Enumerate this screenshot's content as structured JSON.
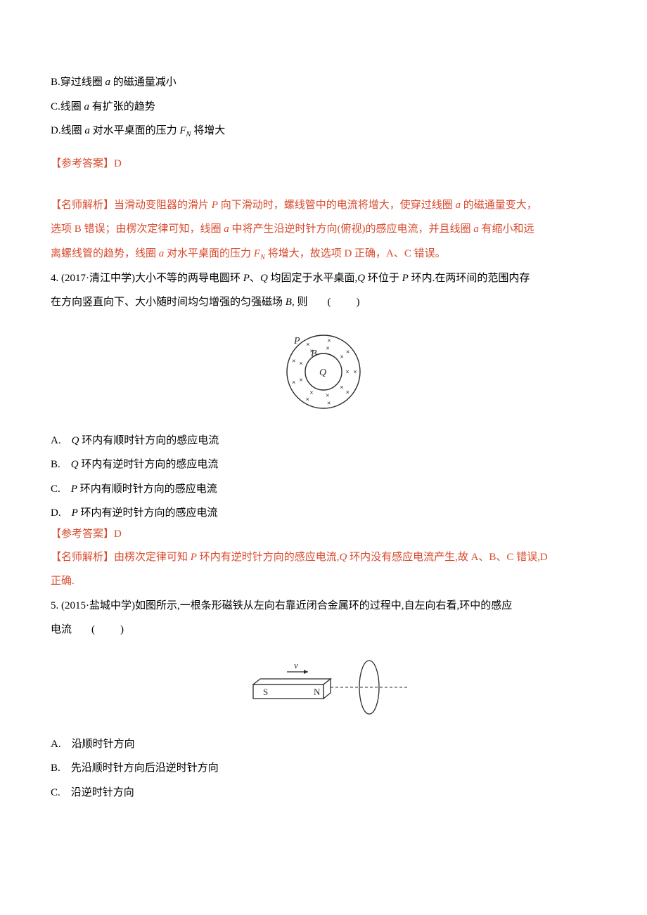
{
  "options1": {
    "b_pre": "B.穿过线圈 ",
    "b_var": "a",
    "b_post": " 的磁通量减小",
    "c_pre": "C.线圈 ",
    "c_var": "a",
    "c_post": " 有扩张的趋势",
    "d_pre": "D.线圈 ",
    "d_var": "a",
    "d_post1": " 对水平桌面的压力 ",
    "d_fn": "F",
    "d_sub": "N",
    "d_post2": " 将增大"
  },
  "answer1": {
    "label": "【参考答案】",
    "value": "D"
  },
  "explain1": {
    "label": "【名师解析】",
    "line1a": "当滑动变阻器的滑片 ",
    "line1_p": "P",
    "line1b": " 向下滑动时，螺线管中的电流将增大，使穿过线圈 ",
    "line1_a1": "a",
    "line1c": " 的磁通量变大，",
    "line2a": "选项 B 错误；由楞次定律可知，线圈 ",
    "line2_a1": "a",
    "line2b": " 中将产生沿逆时针方向(俯视)的感应电流，并且线圈 ",
    "line2_a2": "a",
    "line2c": " 有缩小和远",
    "line3a": "离螺线管的趋势，线圈 ",
    "line3_a1": "a",
    "line3b": " 对水平桌面的压力 ",
    "line3_fn": "F",
    "line3_sub": "N",
    "line3c": " 将增大，故选项 D 正确，A、C 错误。"
  },
  "q4": {
    "num": "4.",
    "src": " (2017·清江中学)大小不等的两导电圆环 ",
    "p": "P",
    "sep": "、",
    "q": "Q",
    "mid1": " 均固定于水平桌面,",
    "q2": "Q",
    "mid2": " 环位于 ",
    "p2": "P",
    "end1": " 环内.在两环间的范围内存",
    "line2a": "在方向竖直向下、大小随时间均匀增强的匀强磁场 ",
    "b": "B",
    "line2b": ", 则",
    "paren": "(　　)"
  },
  "fig4": {
    "labels": {
      "p": "P",
      "b": "B",
      "q": "Q"
    },
    "colors": {
      "stroke": "#2b2b2b",
      "text": "#2b2b2b"
    },
    "outer_r": 52,
    "inner_r": 26,
    "stroke_width": 1.4
  },
  "q4_opts": {
    "a_pre": "A.　",
    "a_var": "Q",
    "a_post": " 环内有顺时针方向的感应电流",
    "b_pre": "B.　",
    "b_var": "Q",
    "b_post": " 环内有逆时针方向的感应电流",
    "c_pre": "C.　",
    "c_var": "P",
    "c_post": " 环内有顺时针方向的感应电流",
    "d_pre": "D.　",
    "d_var": "P",
    "d_post": " 环内有逆时针方向的感应电流"
  },
  "answer4": {
    "label": "【参考答案】",
    "value": "D"
  },
  "explain4": {
    "label": "【名师解析】",
    "line1a": "由楞次定律可知 ",
    "p": "P",
    "line1b": " 环内有逆时针方向的感应电流,",
    "q": "Q",
    "line1c": " 环内没有感应电流产生,故 A、B、C 错误,D",
    "line2": "正确."
  },
  "q5": {
    "num": "5.",
    "src": " (2015·盐城中学)如图所示,一根条形磁铁从左向右靠近闭合金属环的过程中,自左向右看,环中的感应",
    "line2a": "电流",
    "paren": "(　　)"
  },
  "fig5": {
    "labels": {
      "s": "S",
      "n": "N",
      "v": "v"
    },
    "colors": {
      "stroke": "#2b2b2b",
      "text": "#2b2b2b"
    },
    "stroke_width": 1.3
  },
  "q5_opts": {
    "a": "A.　沿顺时针方向",
    "b": "B.　先沿顺时针方向后沿逆时针方向",
    "c": "C.　沿逆时针方向"
  }
}
